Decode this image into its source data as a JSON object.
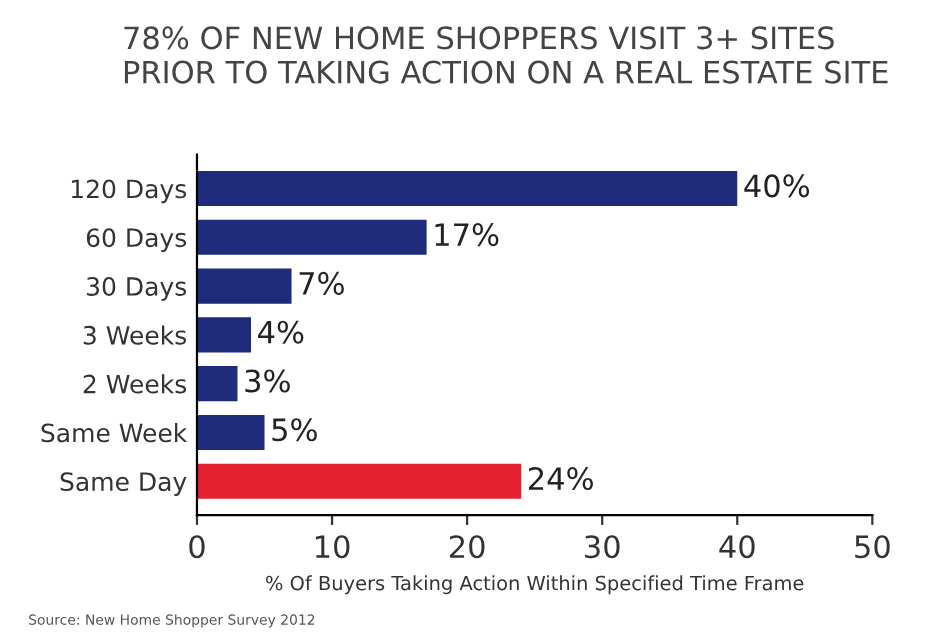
{
  "chart_data": {
    "type": "bar",
    "orientation": "horizontal",
    "title": "78% OF NEW HOME SHOPPERS VISIT 3+ SITES\nPRIOR TO TAKING ACTION ON A REAL ESTATE SITE",
    "xlabel": "% Of Buyers Taking Action Within Specified Time Frame",
    "annotations": [
      "Source: New Home Shopper Survey 2012"
    ],
    "categories": [
      "120 Days",
      "60 Days",
      "30 Days",
      "3 Weeks",
      "2 Weeks",
      "Same Week",
      "Same Day"
    ],
    "values": [
      40,
      17,
      7,
      4,
      3,
      5,
      24
    ],
    "value_labels": [
      "40%",
      "17%",
      "7%",
      "4%",
      "3%",
      "5%",
      "24%"
    ],
    "colors": [
      "#1f2b7b",
      "#1f2b7b",
      "#1f2b7b",
      "#1f2b7b",
      "#1f2b7b",
      "#1f2b7b",
      "#e3212f"
    ],
    "xlim": [
      0,
      50
    ],
    "xticks": [
      0,
      10,
      20,
      30,
      40,
      50
    ],
    "grid": false
  }
}
